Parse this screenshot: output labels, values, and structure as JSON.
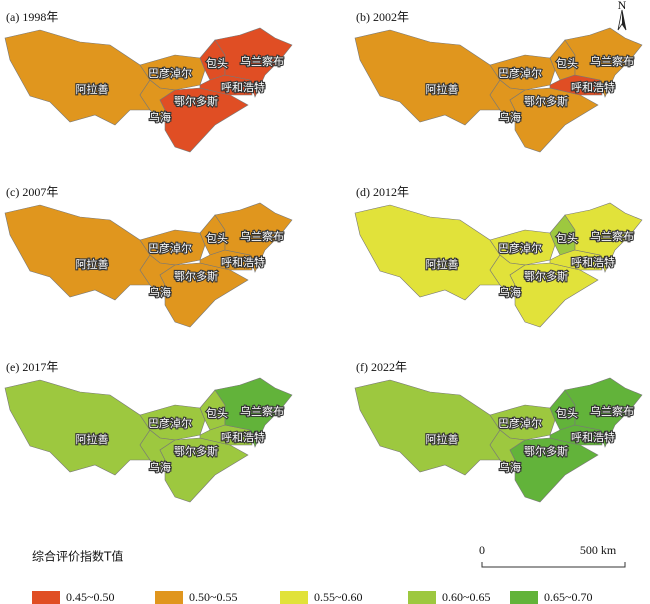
{
  "panels": [
    {
      "title": "(a) 1998年",
      "regions": [
        {
          "name": "阿拉善",
          "color": "#e0961e"
        },
        {
          "name": "巴彦淖尔",
          "color": "#e0961e"
        },
        {
          "name": "乌海",
          "color": "#e0961e"
        },
        {
          "name": "鄂尔多斯",
          "color": "#e04e24"
        },
        {
          "name": "包头",
          "color": "#e04e24"
        },
        {
          "name": "呼和浩特",
          "color": "#e04e24"
        },
        {
          "name": "乌兰察布",
          "color": "#e04e24"
        }
      ]
    },
    {
      "title": "(b) 2002年",
      "regions": [
        {
          "name": "阿拉善",
          "color": "#e0961e"
        },
        {
          "name": "巴彦淖尔",
          "color": "#e0961e"
        },
        {
          "name": "乌海",
          "color": "#e0961e"
        },
        {
          "name": "鄂尔多斯",
          "color": "#e0961e"
        },
        {
          "name": "包头",
          "color": "#e0961e"
        },
        {
          "name": "呼和浩特",
          "color": "#e04e24"
        },
        {
          "name": "乌兰察布",
          "color": "#e0961e"
        }
      ]
    },
    {
      "title": "(c) 2007年",
      "regions": [
        {
          "name": "阿拉善",
          "color": "#e0961e"
        },
        {
          "name": "巴彦淖尔",
          "color": "#e0961e"
        },
        {
          "name": "乌海",
          "color": "#e0961e"
        },
        {
          "name": "鄂尔多斯",
          "color": "#e0961e"
        },
        {
          "name": "包头",
          "color": "#e0961e"
        },
        {
          "name": "呼和浩特",
          "color": "#e0961e"
        },
        {
          "name": "乌兰察布",
          "color": "#e0961e"
        }
      ]
    },
    {
      "title": "(d) 2012年",
      "regions": [
        {
          "name": "阿拉善",
          "color": "#e1e23a"
        },
        {
          "name": "巴彦淖尔",
          "color": "#e1e23a"
        },
        {
          "name": "乌海",
          "color": "#e1e23a"
        },
        {
          "name": "鄂尔多斯",
          "color": "#e1e23a"
        },
        {
          "name": "包头",
          "color": "#9dc83f"
        },
        {
          "name": "呼和浩特",
          "color": "#e1e23a"
        },
        {
          "name": "乌兰察布",
          "color": "#e1e23a"
        }
      ]
    },
    {
      "title": "(e) 2017年",
      "regions": [
        {
          "name": "阿拉善",
          "color": "#9dc83f"
        },
        {
          "name": "巴彦淖尔",
          "color": "#9dc83f"
        },
        {
          "name": "乌海",
          "color": "#9dc83f"
        },
        {
          "name": "鄂尔多斯",
          "color": "#9dc83f"
        },
        {
          "name": "包头",
          "color": "#9dc83f"
        },
        {
          "name": "呼和浩特",
          "color": "#9dc83f"
        },
        {
          "name": "乌兰察布",
          "color": "#62b33a"
        }
      ]
    },
    {
      "title": "(f) 2022年",
      "regions": [
        {
          "name": "阿拉善",
          "color": "#9dc83f"
        },
        {
          "name": "巴彦淖尔",
          "color": "#9dc83f"
        },
        {
          "name": "乌海",
          "color": "#9dc83f"
        },
        {
          "name": "鄂尔多斯",
          "color": "#62b33a"
        },
        {
          "name": "包头",
          "color": "#62b33a"
        },
        {
          "name": "呼和浩特",
          "color": "#62b33a"
        },
        {
          "name": "乌兰察布",
          "color": "#62b33a"
        }
      ]
    }
  ],
  "legend": {
    "title": "综合评价指数T值",
    "items": [
      {
        "label": "0.45~0.50",
        "color": "#e04e24"
      },
      {
        "label": "0.50~0.55",
        "color": "#e0961e"
      },
      {
        "label": "0.55~0.60",
        "color": "#e1e23a"
      },
      {
        "label": "0.60~0.65",
        "color": "#9dc83f"
      },
      {
        "label": "0.65~0.70",
        "color": "#62b33a"
      }
    ]
  },
  "scale_bar": {
    "labels": [
      "0",
      "500 km"
    ]
  },
  "north_arrow": "N"
}
